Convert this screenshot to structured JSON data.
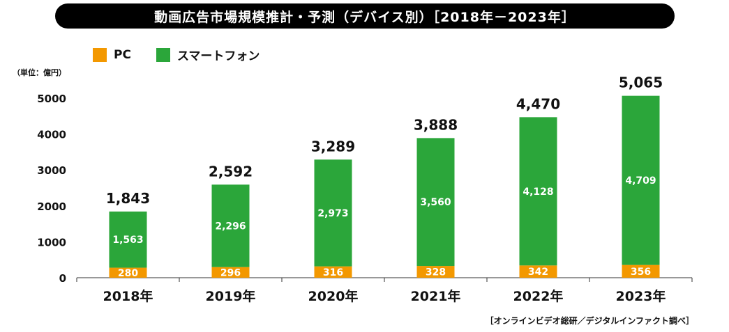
{
  "title": "動画広告市場規模推計・予測（デバイス別）［2018年－2023年］",
  "legend": [
    {
      "label": "PC",
      "color": "#f39800"
    },
    {
      "label": "スマートフォン",
      "color": "#2ba63a"
    }
  ],
  "unit_label": "（単位：億円）",
  "source": "［オンラインビデオ総研／デジタルインファクト調べ］",
  "chart_data": {
    "type": "bar",
    "stacked": true,
    "categories": [
      "2018年",
      "2019年",
      "2020年",
      "2021年",
      "2022年",
      "2023年"
    ],
    "series": [
      {
        "name": "PC",
        "color": "#f39800",
        "values": [
          280,
          296,
          316,
          328,
          342,
          356
        ],
        "labels": [
          "280",
          "296",
          "316",
          "328",
          "342",
          "356"
        ]
      },
      {
        "name": "スマートフォン",
        "color": "#2ba63a",
        "values": [
          1563,
          2296,
          2973,
          3560,
          4128,
          4709
        ],
        "labels": [
          "1,563",
          "2,296",
          "2,973",
          "3,560",
          "4,128",
          "4,709"
        ]
      }
    ],
    "totals": [
      1843,
      2592,
      3289,
      3888,
      4470,
      5065
    ],
    "total_labels": [
      "1,843",
      "2,592",
      "3,289",
      "3,888",
      "4,470",
      "5,065"
    ],
    "ylim": [
      0,
      5000
    ],
    "yticks": [
      0,
      1000,
      2000,
      3000,
      4000,
      5000
    ],
    "grid": false,
    "legend_position": "top-left"
  }
}
